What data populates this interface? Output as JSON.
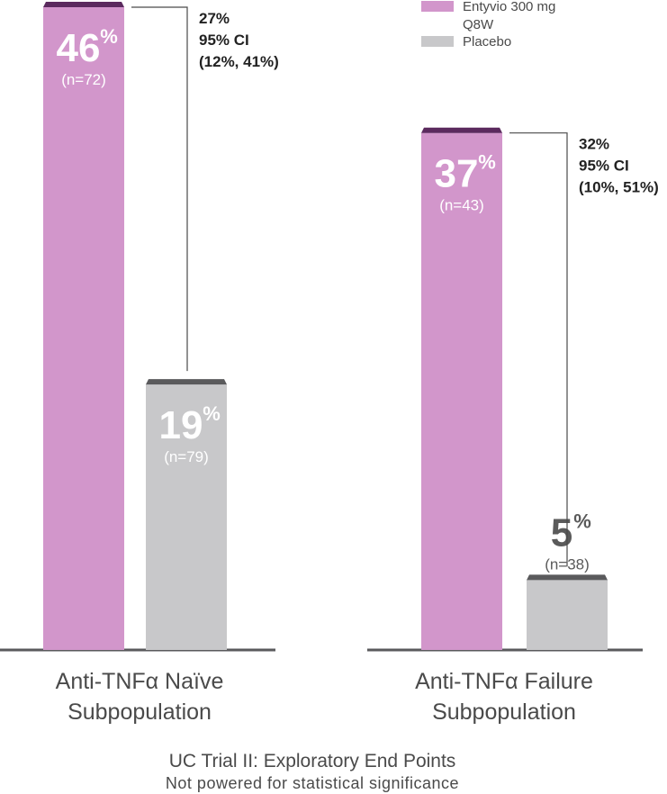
{
  "chart_data": {
    "type": "bar",
    "title": "UC Trial II: Exploratory End Points",
    "subtitle": "Not powered for statistical significance",
    "unit": "%",
    "ylim": [
      0,
      46
    ],
    "categories": [
      [
        "Anti-TNFα Naïve",
        "Subpopulation"
      ],
      [
        "Anti-TNFα Failure",
        "Subpopulation"
      ]
    ],
    "series": [
      {
        "name": "Entyvio 300 mg Q8W",
        "color": "#d296cb",
        "cap_color": "#5b2a5e",
        "values": [
          46,
          37
        ],
        "n_labels": [
          "(n=72)",
          "(n=43)"
        ]
      },
      {
        "name": "Placebo",
        "color": "#c8c8ca",
        "cap_color": "#5a5a5c",
        "values": [
          19,
          5
        ],
        "n_labels": [
          "(n=79)",
          "(n=38)"
        ]
      }
    ],
    "differences": [
      [
        "27%",
        "95% CI",
        "(12%, 41%)"
      ],
      [
        "32%",
        "95% CI",
        "(10%, 51%)"
      ]
    ],
    "legend": {
      "position": "top-right",
      "entries": [
        {
          "label_lines": [
            "Entyvio 300 mg",
            "Q8W"
          ],
          "color": "#d296cb"
        },
        {
          "label_lines": [
            "Placebo"
          ],
          "color": "#c8c8ca"
        }
      ]
    },
    "axis_color": "#5a5a5c",
    "bracket_color": "#4a4a4a"
  }
}
